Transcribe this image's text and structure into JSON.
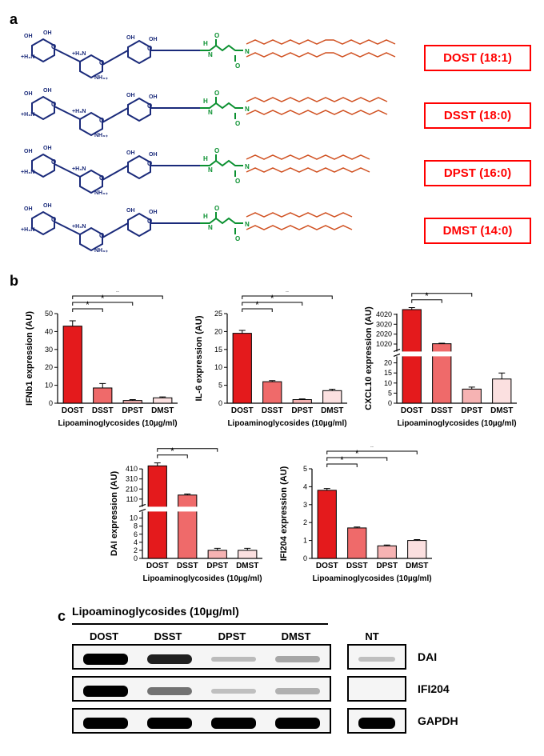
{
  "panel_a": {
    "label": "a",
    "sugar_color": "#1a2a7a",
    "linker_color": "#0a9030",
    "lipid_color": "#d05020",
    "name_border_color": "#ff0000",
    "name_text_color": "#ff0000",
    "structures": [
      {
        "name": "DOST (18:1)",
        "chain": "18:1"
      },
      {
        "name": "DSST (18:0)",
        "chain": "18:0"
      },
      {
        "name": "DPST (16:0)",
        "chain": "16:0"
      },
      {
        "name": "DMST (14:0)",
        "chain": "14:0"
      }
    ],
    "sugar_substituents": [
      "OH",
      "+H₃N",
      "OH",
      "NH₃₊"
    ]
  },
  "panel_b": {
    "label": "b",
    "x_axis_label": "Lipoaminoglycosides (10µg/ml)",
    "categories": [
      "DOST",
      "DSST",
      "DPST",
      "DMST"
    ],
    "bar_colors": [
      "#e41a1c",
      "#ef6a6a",
      "#f6b3b3",
      "#fbe0e0"
    ],
    "bar_border": "#000000",
    "axis_color": "#000000",
    "sig_symbol": "*",
    "sig_pairs": [
      [
        0,
        1
      ],
      [
        0,
        2
      ],
      [
        0,
        3
      ]
    ],
    "charts": [
      {
        "ylabel": "IFNb1 expression (AU)",
        "values": [
          43,
          8.5,
          1.5,
          3
        ],
        "errors": [
          3,
          2.5,
          0.5,
          0.5
        ],
        "ylim": [
          0,
          50
        ],
        "ytick_step": 10,
        "broken": false
      },
      {
        "ylabel": "IL-6 expression (AU)",
        "values": [
          19.5,
          6,
          1,
          3.5
        ],
        "errors": [
          0.8,
          0.3,
          0.2,
          0.4
        ],
        "ylim": [
          0,
          25
        ],
        "ytick_step": 5,
        "broken": false
      },
      {
        "ylabel": "CXCL10 expression (AU)",
        "broken": true,
        "lower": {
          "ylim": [
            0,
            20
          ],
          "ytick_step": 5
        },
        "upper": {
          "ylim": [
            20,
            5000
          ],
          "ytick_step": 1000
        },
        "values": [
          4500,
          1050,
          7,
          12
        ],
        "errors": [
          200,
          50,
          1,
          3
        ]
      },
      {
        "ylabel": "DAI expression (AU)",
        "broken": true,
        "lower": {
          "ylim": [
            0,
            10
          ],
          "ytick_step": 2
        },
        "upper": {
          "ylim": [
            10,
            500
          ],
          "ytick_step": 100
        },
        "values": [
          440,
          150,
          2,
          2
        ],
        "errors": [
          30,
          10,
          0.5,
          0.5
        ]
      },
      {
        "ylabel": "IFI204 expression (AU)",
        "values": [
          3.8,
          1.7,
          0.7,
          1.0
        ],
        "errors": [
          0.1,
          0.05,
          0.05,
          0.05
        ],
        "ylim": [
          0,
          5
        ],
        "ytick_step": 1,
        "broken": false
      }
    ]
  },
  "panel_c": {
    "label": "c",
    "title": "Lipoaminoglycosides (10µg/ml)",
    "lane_labels": [
      "DOST",
      "DSST",
      "DPST",
      "DMST"
    ],
    "nt_label": "NT",
    "rows": [
      {
        "protein": "DAI",
        "intensities": [
          1.0,
          0.85,
          0.1,
          0.2
        ],
        "nt_intensity": 0.08
      },
      {
        "protein": "IFI204",
        "intensities": [
          1.0,
          0.45,
          0.08,
          0.15
        ],
        "nt_intensity": 0.0
      },
      {
        "protein": "GAPDH",
        "intensities": [
          1.0,
          1.0,
          1.0,
          1.0
        ],
        "nt_intensity": 1.0
      }
    ],
    "band_color_dark": "#111111",
    "band_bg": "#f5f5f5"
  }
}
